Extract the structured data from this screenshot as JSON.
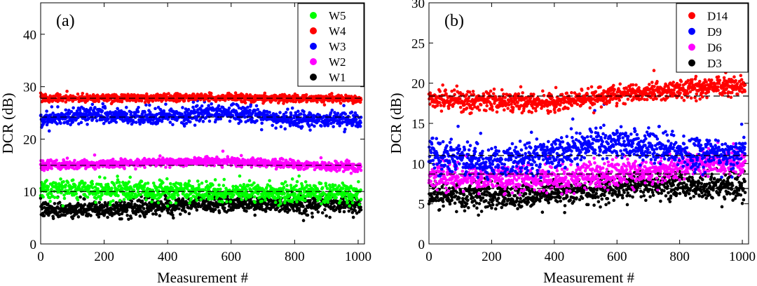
{
  "chart_data": [
    {
      "type": "scatter",
      "panel_label": "(a)",
      "xlabel": "Measurement #",
      "ylabel": "DCR (dB)",
      "xlim": [
        0,
        1020
      ],
      "ylim": [
        0,
        46
      ],
      "xticks": [
        0,
        200,
        400,
        600,
        800,
        1000
      ],
      "yticks": [
        0,
        10,
        20,
        30,
        40
      ],
      "grid": false,
      "legend_position": "top-right",
      "n_points": 1010,
      "series": [
        {
          "name": "W5",
          "color": "#00ff00",
          "mean": 10.1,
          "trend": [
            [
              0,
              10.4
            ],
            [
              1000,
              9.6
            ]
          ],
          "noise": 0.9,
          "dash_level": 10.0
        },
        {
          "name": "W4",
          "color": "#ff0000",
          "mean": 27.8,
          "trend": [
            [
              0,
              27.7
            ],
            [
              500,
              28.0
            ],
            [
              1000,
              27.6
            ]
          ],
          "noise": 0.35,
          "dash_level": 27.8
        },
        {
          "name": "W3",
          "color": "#0000ff",
          "mean": 24.2,
          "trend": [
            [
              0,
              23.8
            ],
            [
              150,
              24.8
            ],
            [
              300,
              24.0
            ],
            [
              600,
              25.2
            ],
            [
              750,
              23.8
            ],
            [
              1000,
              23.8
            ]
          ],
          "noise": 0.8,
          "dash_level": 24.2
        },
        {
          "name": "W2",
          "color": "#ff00ff",
          "mean": 15.2,
          "trend": [
            [
              0,
              15.0
            ],
            [
              550,
              15.8
            ],
            [
              1000,
              14.6
            ]
          ],
          "noise": 0.4,
          "dash_level": 15.0
        },
        {
          "name": "W1",
          "color": "#000000",
          "mean": 7.2,
          "trend": [
            [
              0,
              6.5
            ],
            [
              300,
              6.8
            ],
            [
              550,
              7.8
            ],
            [
              1000,
              7.4
            ]
          ],
          "noise": 0.8,
          "dash_level": null
        }
      ]
    },
    {
      "type": "scatter",
      "panel_label": "(b)",
      "xlabel": "Measurement #",
      "ylabel": "DCR (dB)",
      "xlim": [
        0,
        1020
      ],
      "ylim": [
        0,
        30
      ],
      "xticks": [
        0,
        200,
        400,
        600,
        800,
        1000
      ],
      "yticks": [
        0,
        5,
        10,
        15,
        20,
        25,
        30
      ],
      "grid": false,
      "legend_position": "top-right",
      "n_points": 1010,
      "series": [
        {
          "name": "D14",
          "color": "#ff0000",
          "mean": 18.4,
          "trend": [
            [
              0,
              18.0
            ],
            [
              200,
              17.8
            ],
            [
              400,
              17.6
            ],
            [
              600,
              18.6
            ],
            [
              800,
              19.2
            ],
            [
              1000,
              19.6
            ]
          ],
          "noise": 0.6,
          "dash_level": 18.4
        },
        {
          "name": "D9",
          "color": "#0000ff",
          "mean": 11.0,
          "trend": [
            [
              0,
              11.0
            ],
            [
              200,
              10.0
            ],
            [
              400,
              11.2
            ],
            [
              550,
              12.8
            ],
            [
              700,
              12.2
            ],
            [
              850,
              11.0
            ],
            [
              1000,
              11.6
            ]
          ],
          "noise": 1.0,
          "dash_level": 11.0
        },
        {
          "name": "D6",
          "color": "#ff00ff",
          "mean": 8.7,
          "trend": [
            [
              0,
              8.4
            ],
            [
              300,
              8.0
            ],
            [
              600,
              8.6
            ],
            [
              800,
              9.6
            ],
            [
              1000,
              10.2
            ]
          ],
          "noise": 0.8,
          "dash_level": 8.7
        },
        {
          "name": "D3",
          "color": "#000000",
          "mean": 6.6,
          "trend": [
            [
              0,
              6.2
            ],
            [
              200,
              5.8
            ],
            [
              400,
              6.2
            ],
            [
              700,
              7.4
            ],
            [
              1000,
              7.0
            ]
          ],
          "noise": 0.8,
          "dash_level": 6.9
        }
      ]
    }
  ]
}
